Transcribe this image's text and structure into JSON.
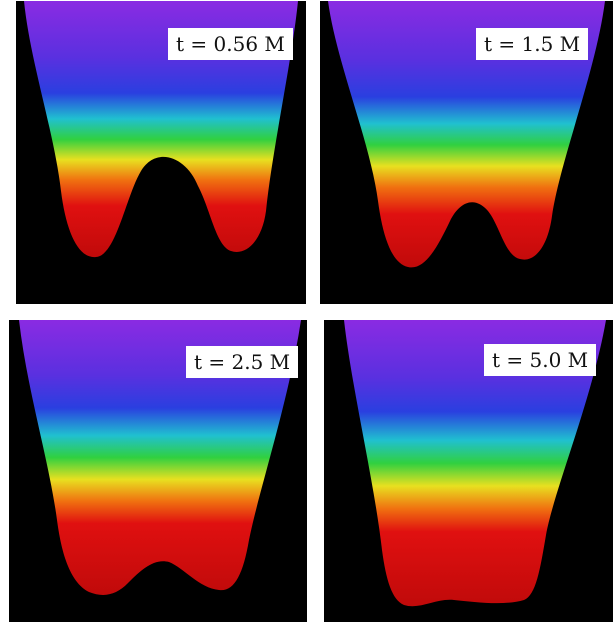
{
  "panels": [
    {
      "label": "t = 0.56 M"
    },
    {
      "label": "t = 1.5 M"
    },
    {
      "label": "t = 2.5 M"
    },
    {
      "label": "t = 5.0 M"
    }
  ],
  "colors": {
    "background": "#000000",
    "violet": "#8a2be2",
    "blue": "#2a3fe0",
    "cyan": "#20c0d0",
    "green": "#30d040",
    "yellow": "#e8e020",
    "orange": "#f07010",
    "red": "#e01010"
  }
}
